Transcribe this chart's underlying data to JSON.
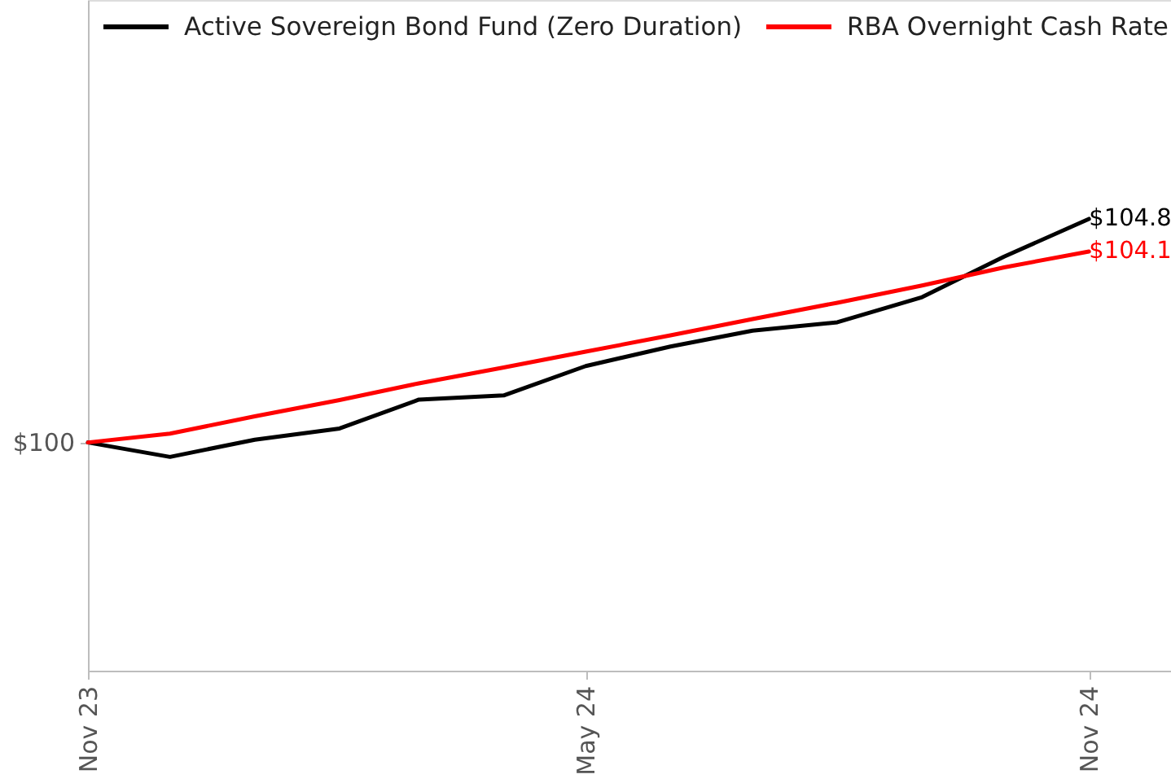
{
  "chart_data": {
    "type": "line",
    "x": [
      "2023-11",
      "2023-12",
      "2024-01",
      "2024-02",
      "2024-03",
      "2024-04",
      "2024-05",
      "2024-06",
      "2024-07",
      "2024-08",
      "2024-09",
      "2024-10",
      "2024-11"
    ],
    "xlim": [
      "2023-11",
      "2024-12"
    ],
    "xticks": [
      {
        "value": "2023-11",
        "label": "Nov 23"
      },
      {
        "value": "2024-05",
        "label": "May 24"
      },
      {
        "value": "2024-11",
        "label": "Nov 24"
      }
    ],
    "ylim": [
      95.1,
      109.5
    ],
    "annotations": [
      {
        "text": "$100",
        "x": "2023-11",
        "y": 100
      }
    ],
    "legend": "top",
    "series": [
      {
        "name": "Active Sovereign Bond Fund (Zero Duration)",
        "color": "#000000",
        "values": [
          100,
          99.69,
          100.06,
          100.3,
          100.92,
          101.01,
          101.64,
          102.06,
          102.4,
          102.58,
          103.12,
          103.99,
          104.8
        ],
        "value_labels": [
          null,
          null,
          null,
          null,
          null,
          null,
          null,
          null,
          null,
          null,
          null,
          null,
          "$104.8"
        ]
      },
      {
        "name": "RBA Overnight Cash Rate",
        "color": "#ff0000",
        "values": [
          100,
          100.19,
          100.56,
          100.91,
          101.27,
          101.61,
          101.95,
          102.3,
          102.65,
          103.0,
          103.37,
          103.76,
          104.1
        ],
        "value_labels": [
          null,
          null,
          null,
          null,
          null,
          null,
          null,
          null,
          null,
          null,
          null,
          null,
          "$104.1"
        ]
      }
    ]
  }
}
